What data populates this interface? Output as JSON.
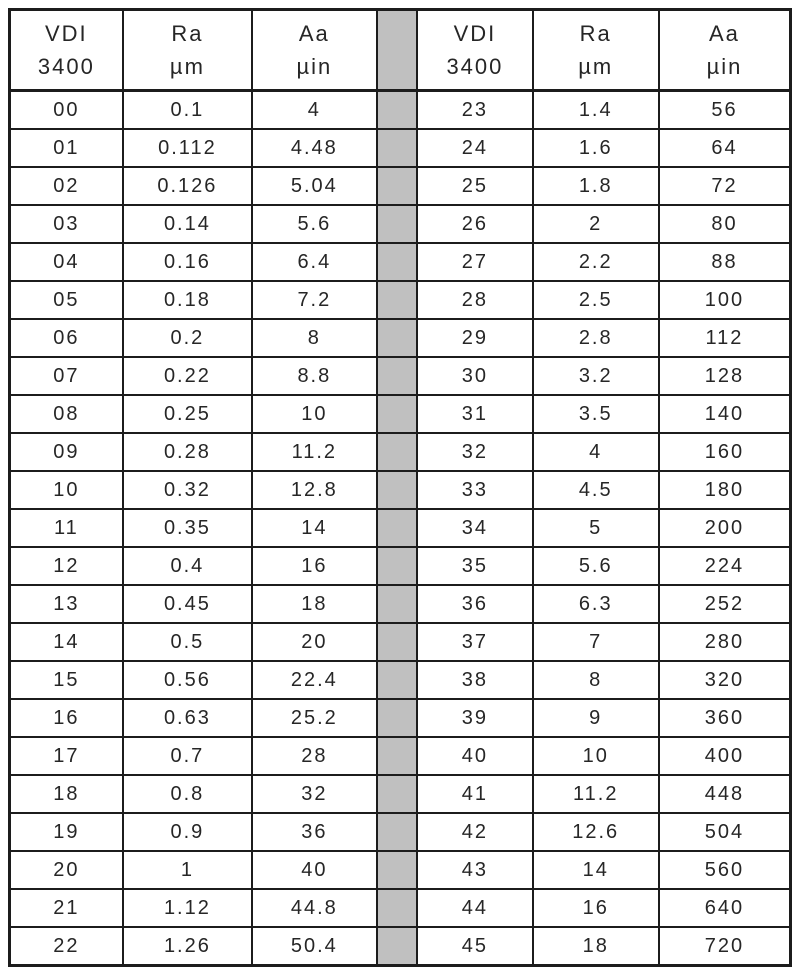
{
  "table": {
    "header": {
      "vdi": [
        "VDI",
        "3400"
      ],
      "ra": [
        "Ra",
        "µm"
      ],
      "aa": [
        "Aa",
        "µin"
      ]
    },
    "left_rows": [
      [
        "00",
        "0.1",
        "4"
      ],
      [
        "01",
        "0.112",
        "4.48"
      ],
      [
        "02",
        "0.126",
        "5.04"
      ],
      [
        "03",
        "0.14",
        "5.6"
      ],
      [
        "04",
        "0.16",
        "6.4"
      ],
      [
        "05",
        "0.18",
        "7.2"
      ],
      [
        "06",
        "0.2",
        "8"
      ],
      [
        "07",
        "0.22",
        "8.8"
      ],
      [
        "08",
        "0.25",
        "10"
      ],
      [
        "09",
        "0.28",
        "11.2"
      ],
      [
        "10",
        "0.32",
        "12.8"
      ],
      [
        "11",
        "0.35",
        "14"
      ],
      [
        "12",
        "0.4",
        "16"
      ],
      [
        "13",
        "0.45",
        "18"
      ],
      [
        "14",
        "0.5",
        "20"
      ],
      [
        "15",
        "0.56",
        "22.4"
      ],
      [
        "16",
        "0.63",
        "25.2"
      ],
      [
        "17",
        "0.7",
        "28"
      ],
      [
        "18",
        "0.8",
        "32"
      ],
      [
        "19",
        "0.9",
        "36"
      ],
      [
        "20",
        "1",
        "40"
      ],
      [
        "21",
        "1.12",
        "44.8"
      ],
      [
        "22",
        "1.26",
        "50.4"
      ]
    ],
    "right_rows": [
      [
        "23",
        "1.4",
        "56"
      ],
      [
        "24",
        "1.6",
        "64"
      ],
      [
        "25",
        "1.8",
        "72"
      ],
      [
        "26",
        "2",
        "80"
      ],
      [
        "27",
        "2.2",
        "88"
      ],
      [
        "28",
        "2.5",
        "100"
      ],
      [
        "29",
        "2.8",
        "112"
      ],
      [
        "30",
        "3.2",
        "128"
      ],
      [
        "31",
        "3.5",
        "140"
      ],
      [
        "32",
        "4",
        "160"
      ],
      [
        "33",
        "4.5",
        "180"
      ],
      [
        "34",
        "5",
        "200"
      ],
      [
        "35",
        "5.6",
        "224"
      ],
      [
        "36",
        "6.3",
        "252"
      ],
      [
        "37",
        "7",
        "280"
      ],
      [
        "38",
        "8",
        "320"
      ],
      [
        "39",
        "9",
        "360"
      ],
      [
        "40",
        "10",
        "400"
      ],
      [
        "41",
        "11.2",
        "448"
      ],
      [
        "42",
        "12.6",
        "504"
      ],
      [
        "43",
        "14",
        "560"
      ],
      [
        "44",
        "16",
        "640"
      ],
      [
        "45",
        "18",
        "720"
      ]
    ]
  },
  "colors": {
    "separator_fill": "#c0c0c0",
    "border": "#1c1c1c",
    "text": "#262626",
    "background": "#ffffff"
  }
}
